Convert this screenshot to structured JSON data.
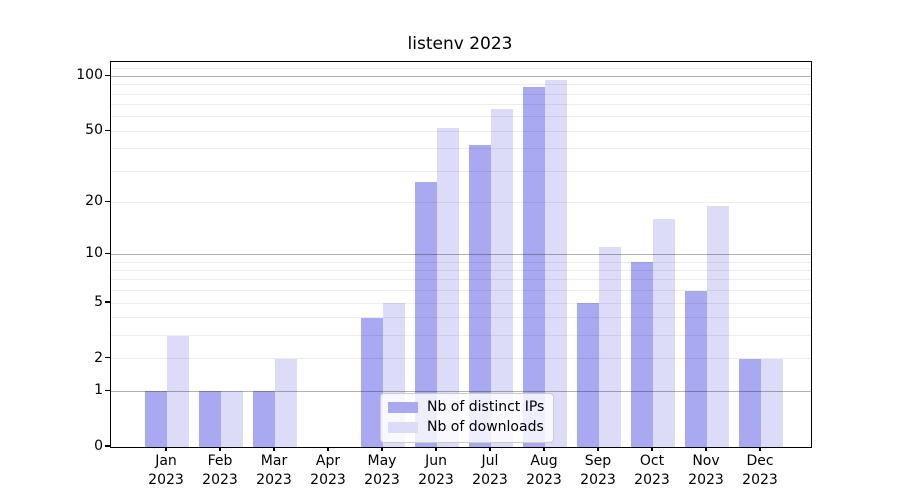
{
  "chart_data": {
    "type": "bar",
    "title": "listenv 2023",
    "categories": [
      "Jan",
      "Feb",
      "Mar",
      "Apr",
      "May",
      "Jun",
      "Jul",
      "Aug",
      "Sep",
      "Oct",
      "Nov",
      "Dec"
    ],
    "year_label": "2023",
    "series": [
      {
        "name": "Nb of distinct IPs",
        "color": "#a9a9f1",
        "values": [
          1,
          1,
          1,
          0,
          4,
          26,
          42,
          87,
          5,
          9,
          6,
          2
        ]
      },
      {
        "name": "Nb of downloads",
        "color": "#dcdcf8",
        "values": [
          3,
          1,
          2,
          0,
          5,
          52,
          66,
          96,
          11,
          16,
          19,
          2
        ]
      }
    ],
    "yscale": "log1p",
    "yticks": [
      0,
      1,
      2,
      5,
      10,
      20,
      50,
      100
    ],
    "ylim": [
      0,
      120
    ],
    "xlabel": "",
    "ylabel": "",
    "grid": true,
    "legend_position": "lower-center",
    "colors": {
      "major_gridline": "#b3b3b3",
      "minor_gridline": "#ebebeb",
      "axis_spine": "#000000",
      "background": "#ffffff"
    }
  }
}
